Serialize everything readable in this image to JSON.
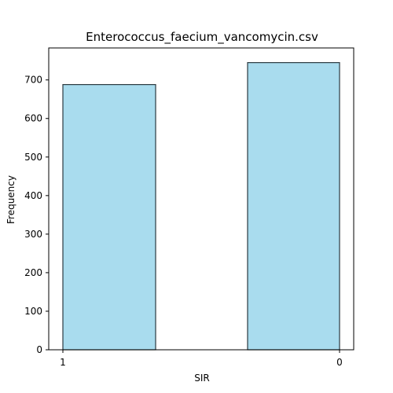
{
  "chart_data": {
    "type": "bar",
    "title": "Enterococcus_faecium_vancomycin.csv",
    "xlabel": "SIR",
    "ylabel": "Frequency",
    "categories": [
      "1",
      "0"
    ],
    "values": [
      688,
      745
    ],
    "ylim": [
      0,
      783
    ],
    "yticks": [
      0,
      100,
      200,
      300,
      400,
      500,
      600,
      700
    ],
    "xticks": [
      "1",
      "0"
    ],
    "grid": false,
    "legend": "none",
    "colors": {
      "bar_fill": "#a9dcee",
      "bar_edge": "#2b3a40",
      "axis": "#000000"
    }
  }
}
